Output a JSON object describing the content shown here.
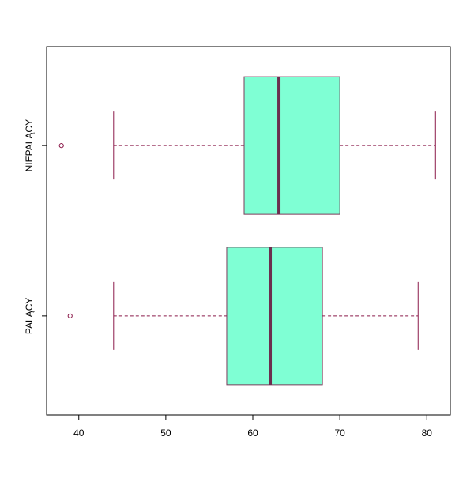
{
  "chart_data": {
    "type": "boxplot",
    "orientation": "horizontal",
    "categories": [
      "PALĄCY",
      "NIEPALĄCY"
    ],
    "boxes": [
      {
        "category": "PALĄCY",
        "whisker_low": 44,
        "q1": 57,
        "median": 62,
        "q3": 68,
        "whisker_high": 79,
        "outliers": [
          39
        ]
      },
      {
        "category": "NIEPALĄCY",
        "whisker_low": 44,
        "q1": 59,
        "median": 63,
        "q3": 70,
        "whisker_high": 81,
        "outliers": [
          38
        ]
      }
    ],
    "x_ticks": [
      "40",
      "50",
      "60",
      "70",
      "80"
    ],
    "x_tick_values": [
      40,
      50,
      60,
      70,
      80
    ],
    "xlim": [
      36.3,
      82.7
    ],
    "grid": false,
    "legend": "none",
    "colors": {
      "box_fill": "#7fffd4",
      "box_stroke": "#7a3b5a",
      "whisker": "#8b1a4a",
      "median": "#6b2f4f",
      "outlier": "#8b1a4a",
      "axis": "#000000"
    }
  }
}
